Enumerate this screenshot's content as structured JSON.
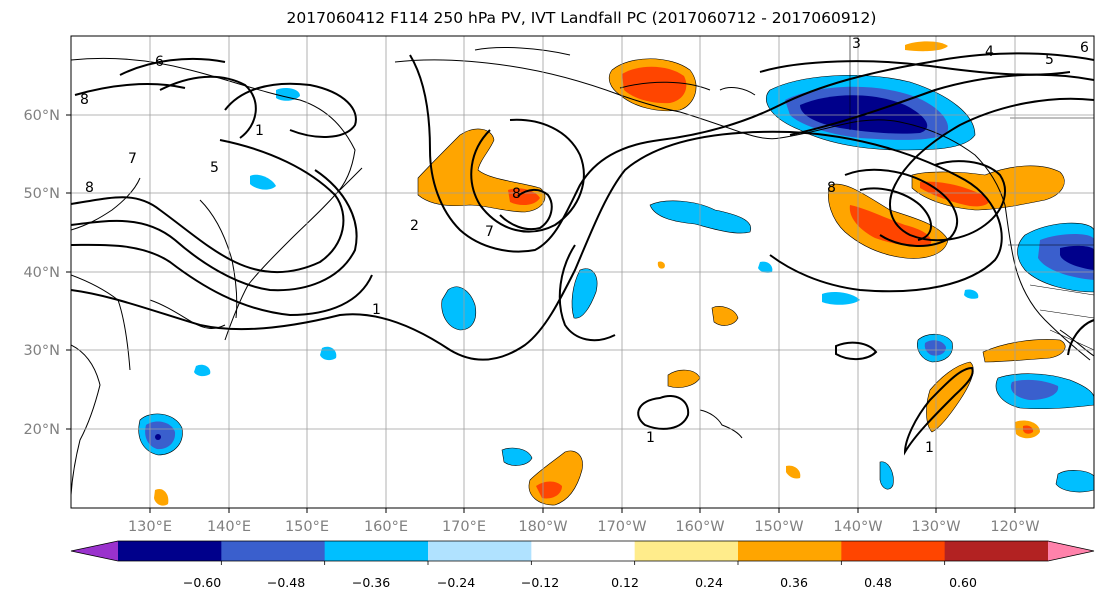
{
  "title": "2017060412 F114 250 hPa PV, IVT Landfall PC (2017060712 - 2017060912)",
  "lat_labels": [
    "60°N",
    "50°N",
    "40°N",
    "30°N",
    "20°N"
  ],
  "lon_labels": [
    "130°E",
    "140°E",
    "150°E",
    "160°E",
    "170°E",
    "180°W",
    "170°W",
    "160°W",
    "150°W",
    "140°W",
    "130°W",
    "120°W"
  ],
  "colorbar": {
    "ticks": [
      "−0.60",
      "−0.48",
      "−0.36",
      "−0.24",
      "−0.12",
      "0.12",
      "0.24",
      "0.36",
      "0.48",
      "0.60"
    ],
    "colors": [
      "#9a32cd",
      "#00008b",
      "#3a5fcd",
      "#00bfff",
      "#b0e2ff",
      "#ffffff",
      "#ffec8b",
      "#ffa500",
      "#ff4500",
      "#b22222",
      "#ff82ab"
    ]
  },
  "contour_labels": [
    "8",
    "6",
    "7",
    "5",
    "8",
    "1",
    "2",
    "7",
    "8",
    "1",
    "1",
    "1",
    "4",
    "3",
    "5",
    "6",
    "8"
  ],
  "colors": {
    "gridline": "#9e9e9e",
    "coast": "#000000",
    "contour": "#000000"
  }
}
